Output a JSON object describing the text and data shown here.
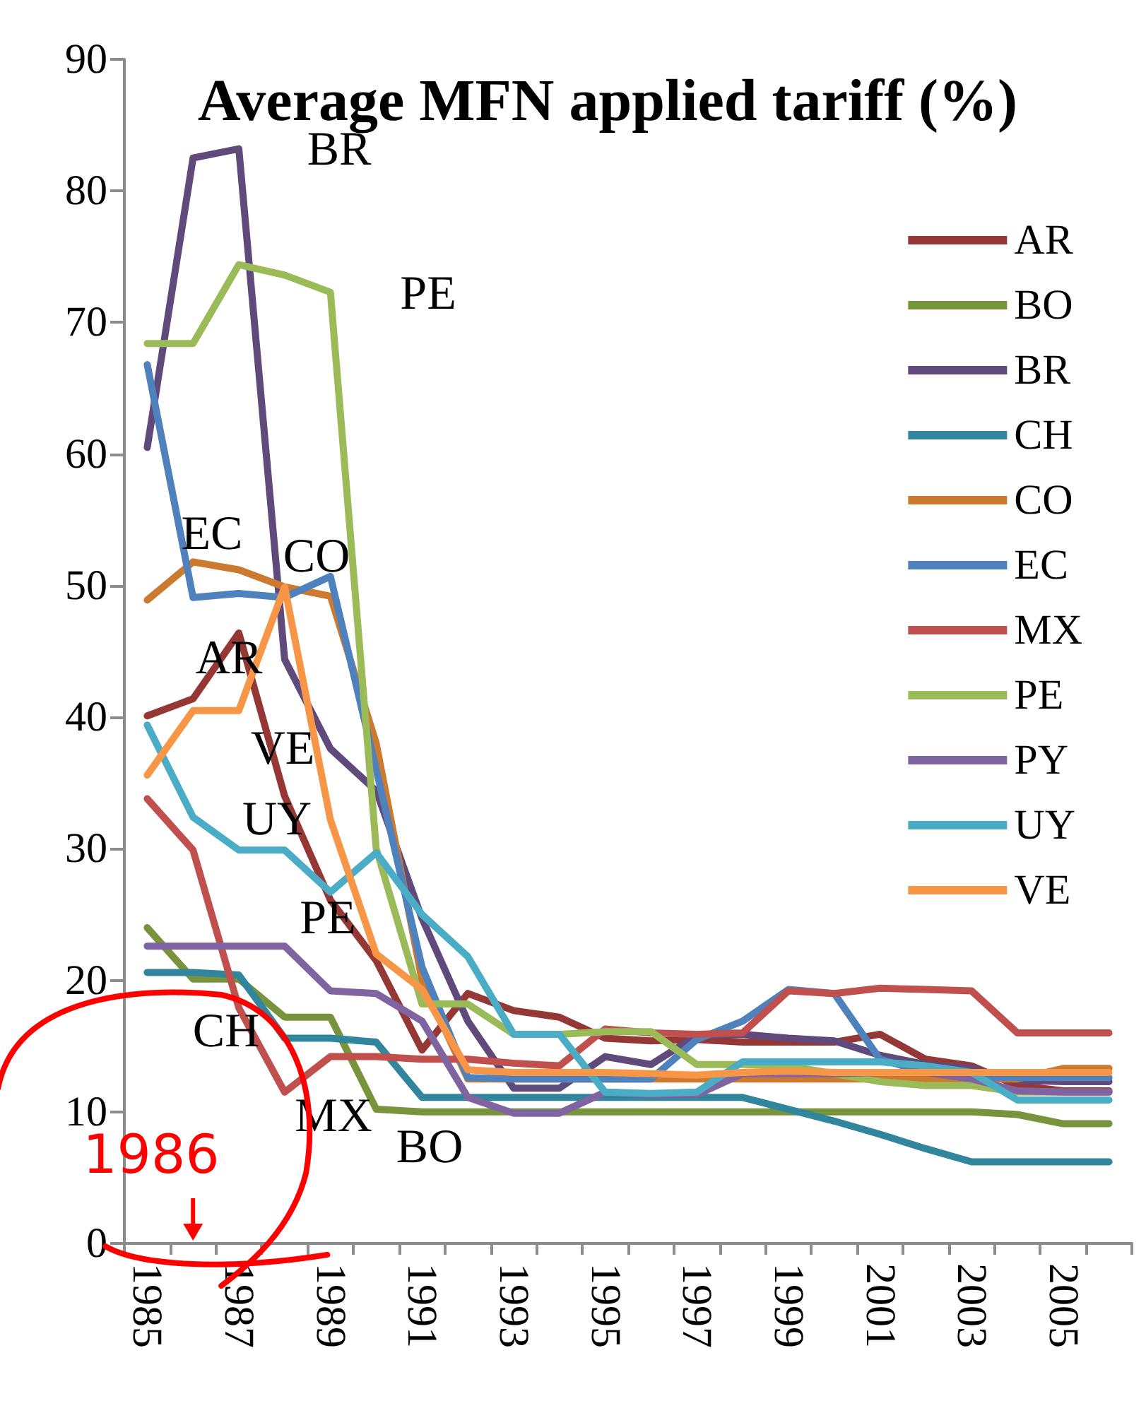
{
  "chart_data": {
    "type": "line",
    "title": "Average MFN applied tariff (%)",
    "x": [
      1985,
      1986,
      1987,
      1988,
      1989,
      1990,
      1991,
      1992,
      1993,
      1994,
      1995,
      1996,
      1997,
      1998,
      1999,
      2000,
      2001,
      2002,
      2003,
      2004,
      2005,
      2006
    ],
    "xlim": [
      1984.5,
      2006.5
    ],
    "xticks": [
      1985,
      1987,
      1989,
      1991,
      1993,
      1995,
      1997,
      1999,
      2001,
      2003,
      2005,
      {
        "value": 1984.5,
        "label": null
      },
      {
        "value": 1985.5,
        "label": null
      },
      {
        "value": 1986.5,
        "label": null
      },
      {
        "value": 1987.5,
        "label": null
      },
      {
        "value": 1988.5,
        "label": null
      },
      {
        "value": 1989.5,
        "label": null
      },
      {
        "value": 1990.5,
        "label": null
      },
      {
        "value": 1991.5,
        "label": null
      },
      {
        "value": 1992.5,
        "label": null
      },
      {
        "value": 1993.5,
        "label": null
      },
      {
        "value": 1994.5,
        "label": null
      },
      {
        "value": 1995.5,
        "label": null
      },
      {
        "value": 1996.5,
        "label": null
      },
      {
        "value": 1997.5,
        "label": null
      },
      {
        "value": 1998.5,
        "label": null
      },
      {
        "value": 1999.5,
        "label": null
      },
      {
        "value": 2000.5,
        "label": null
      },
      {
        "value": 2001.5,
        "label": null
      },
      {
        "value": 2002.5,
        "label": null
      },
      {
        "value": 2003.5,
        "label": null
      },
      {
        "value": 2004.5,
        "label": null
      },
      {
        "value": 2005.5,
        "label": null
      },
      {
        "value": 2006.5,
        "label": null
      }
    ],
    "ylim": [
      0,
      90
    ],
    "yticks": [
      0,
      10,
      20,
      30,
      40,
      50,
      60,
      70,
      80,
      90
    ],
    "grid": false,
    "legend": "top right",
    "marker": "none",
    "series": [
      {
        "name": "AR",
        "color": "#953735",
        "values": [
          40.1,
          41.4,
          46.4,
          34,
          26.1,
          21.5,
          14.7,
          19,
          17.7,
          17.2,
          15.6,
          15.4,
          15.5,
          15.3,
          15.3,
          15.3,
          15.9,
          14,
          13.5,
          12,
          11.6,
          11.6
        ]
      },
      {
        "name": "BO",
        "color": "#77933c",
        "values": [
          24,
          20.1,
          20.1,
          17.2,
          17.2,
          10.2,
          10,
          10,
          10,
          10,
          10,
          10,
          10,
          10,
          10,
          10,
          10,
          10,
          10,
          9.8,
          9.1,
          9.1
        ]
      },
      {
        "name": "BR",
        "color": "#604a7b",
        "values": [
          60.5,
          82.5,
          83.2,
          44.4,
          37.6,
          34.4,
          24.7,
          16.9,
          11.8,
          11.8,
          14.2,
          13.6,
          15.8,
          15.9,
          15.6,
          15.4,
          14.3,
          13.6,
          13.3,
          12.4,
          12.3,
          12.3
        ]
      },
      {
        "name": "CH",
        "color": "#31859c",
        "values": [
          20.6,
          20.6,
          20.4,
          15.6,
          15.6,
          15.3,
          11.1,
          11.1,
          11.1,
          11.1,
          11.1,
          11.1,
          11.1,
          11.1,
          10.2,
          9.3,
          8.3,
          7.2,
          6.2,
          6.2,
          6.2,
          6.2
        ]
      },
      {
        "name": "CO",
        "color": "#cc7a30",
        "values": [
          48.9,
          51.8,
          51.2,
          49.9,
          49.2,
          38,
          20,
          12.5,
          12.5,
          12.5,
          12.5,
          12.5,
          12.5,
          12.5,
          12.5,
          12.5,
          12.5,
          12.5,
          12.5,
          12.5,
          13.3,
          13.3
        ]
      },
      {
        "name": "EC",
        "color": "#4f81bd",
        "values": [
          66.8,
          49.1,
          49.4,
          49.1,
          50.7,
          36,
          21,
          12.6,
          12.5,
          12.5,
          12.5,
          12.5,
          15.5,
          16.9,
          19.3,
          19,
          14,
          13,
          12.6,
          12.6,
          12.6,
          12.6
        ]
      },
      {
        "name": "MX",
        "color": "#c0504d",
        "values": [
          33.8,
          29.9,
          17.9,
          11.5,
          14.2,
          14.2,
          14,
          14,
          13.7,
          13.5,
          16.3,
          16,
          15.9,
          16,
          19.2,
          19,
          19.4,
          19.3,
          19.2,
          16,
          16,
          16
        ]
      },
      {
        "name": "PE",
        "color": "#9bbb59",
        "values": [
          68.4,
          68.4,
          74.4,
          73.6,
          72.3,
          30,
          18.2,
          18.2,
          15.9,
          15.9,
          16.1,
          16.1,
          13.6,
          13.6,
          13.5,
          12.9,
          12.3,
          12,
          12,
          11.5,
          11.5,
          11.5
        ]
      },
      {
        "name": "PY",
        "color": "#8064a2",
        "values": [
          22.6,
          22.6,
          22.6,
          22.6,
          19.2,
          19,
          16.9,
          11.1,
          9.9,
          9.9,
          11.5,
          11.3,
          11.3,
          12.9,
          12.9,
          12.9,
          13,
          13,
          12.5,
          11.6,
          11.5,
          11.5
        ]
      },
      {
        "name": "UY",
        "color": "#4bacc6",
        "values": [
          39.4,
          32.4,
          29.9,
          29.9,
          26.7,
          29.7,
          25,
          21.8,
          15.9,
          15.9,
          11.5,
          11.4,
          11.5,
          13.8,
          13.8,
          13.8,
          13.8,
          13.5,
          13,
          10.9,
          10.9,
          10.9
        ]
      },
      {
        "name": "VE",
        "color": "#f79646",
        "values": [
          35.6,
          40.5,
          40.5,
          49.9,
          32.2,
          22,
          19.3,
          13.2,
          13,
          13,
          13,
          12.9,
          12.8,
          13,
          13.1,
          13,
          13,
          13,
          13,
          13,
          13,
          13
        ]
      }
    ],
    "annotations": [
      "BR",
      "PE",
      "EC",
      "CO",
      "AR",
      "VE",
      "UY",
      "PE",
      "CH",
      "MX",
      "BO",
      "1986"
    ]
  }
}
